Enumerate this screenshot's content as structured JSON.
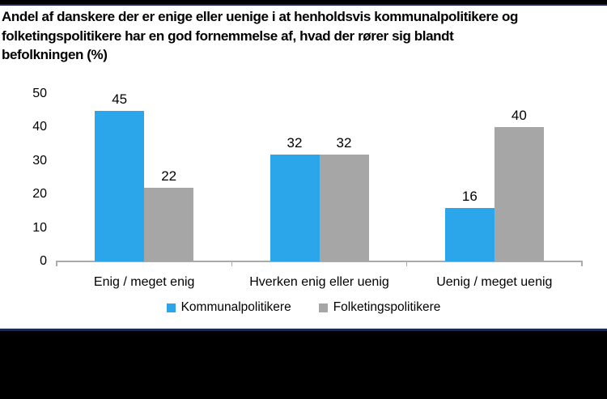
{
  "page": {
    "background": "#FFFFFF",
    "top_bar_color": "#000000",
    "accent_line_color": "#1E2A55",
    "footer_color": "#000000"
  },
  "chart_data": {
    "type": "bar",
    "title": "Andel af danskere der er enige eller uenige i at henholdsvis kommunalpolitikere og folketingspolitikere har en god fornemmelse af, hvad der rører sig blandt befolkningen (%)",
    "title_lines": [
      "Andel af danskere der er enige eller uenige i at henholdsvis kommunalpolitikere og",
      "folketingspolitikere har en god fornemmelse af, hvad der rører sig blandt",
      "befolkningen (%)"
    ],
    "categories": [
      "Enig / meget enig",
      "Hverken enig eller uenig",
      "Uenig / meget uenig"
    ],
    "series": [
      {
        "name": "Kommunalpolitikere",
        "color": "#2BA6EB",
        "values": [
          45,
          32,
          16
        ]
      },
      {
        "name": "Folketingspolitikere",
        "color": "#A6A6A6",
        "values": [
          22,
          32,
          40
        ]
      }
    ],
    "y_ticks": [
      0,
      10,
      20,
      30,
      40,
      50
    ],
    "ylim": [
      0,
      50
    ],
    "xlabel": "",
    "ylabel": "",
    "grid": false,
    "legend_position": "bottom",
    "value_labels": true,
    "axis_color": "#ABABAB",
    "text_color": "#000000"
  }
}
